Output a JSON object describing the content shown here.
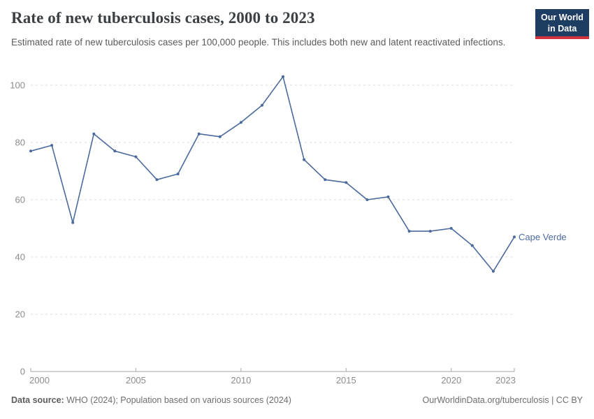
{
  "header": {
    "title": "Rate of new tuberculosis cases, 2000 to 2023",
    "subtitle": "Estimated rate of new tuberculosis cases per 100,000 people. This includes both new and latent reactivated infections."
  },
  "logo": {
    "line1": "Our World",
    "line2": "in Data",
    "bg_color": "#1d3d63",
    "accent_color": "#d2333c"
  },
  "chart_data": {
    "type": "line",
    "title": "Rate of new tuberculosis cases, 2000 to 2023",
    "xlabel": "",
    "ylabel": "",
    "x": [
      2000,
      2001,
      2002,
      2003,
      2004,
      2005,
      2006,
      2007,
      2008,
      2009,
      2010,
      2011,
      2012,
      2013,
      2014,
      2015,
      2016,
      2017,
      2018,
      2019,
      2020,
      2021,
      2022,
      2023
    ],
    "series": [
      {
        "name": "Cape Verde",
        "color": "#4C6A9C",
        "values": [
          77,
          79,
          52,
          83,
          77,
          75,
          67,
          69,
          83,
          82,
          87,
          93,
          103,
          74,
          67,
          66,
          60,
          61,
          49,
          49,
          50,
          44,
          35,
          47
        ]
      }
    ],
    "xticks": [
      2000,
      2005,
      2010,
      2015,
      2020,
      2023
    ],
    "yticks": [
      0,
      20,
      40,
      60,
      80,
      100
    ],
    "xlim": [
      2000,
      2023
    ],
    "ylim": [
      0,
      100
    ],
    "grid": true,
    "grid_style": "dashed",
    "legend_position": "end-of-line",
    "colors": {
      "grid": "#dcdcdc",
      "axis": "#a6a6a6",
      "tick_label": "#8c8c8c"
    }
  },
  "footer": {
    "source_label": "Data source:",
    "source_text": " WHO (2024); Population based on various sources (2024)",
    "right_text": "OurWorldinData.org/tuberculosis | CC BY"
  }
}
